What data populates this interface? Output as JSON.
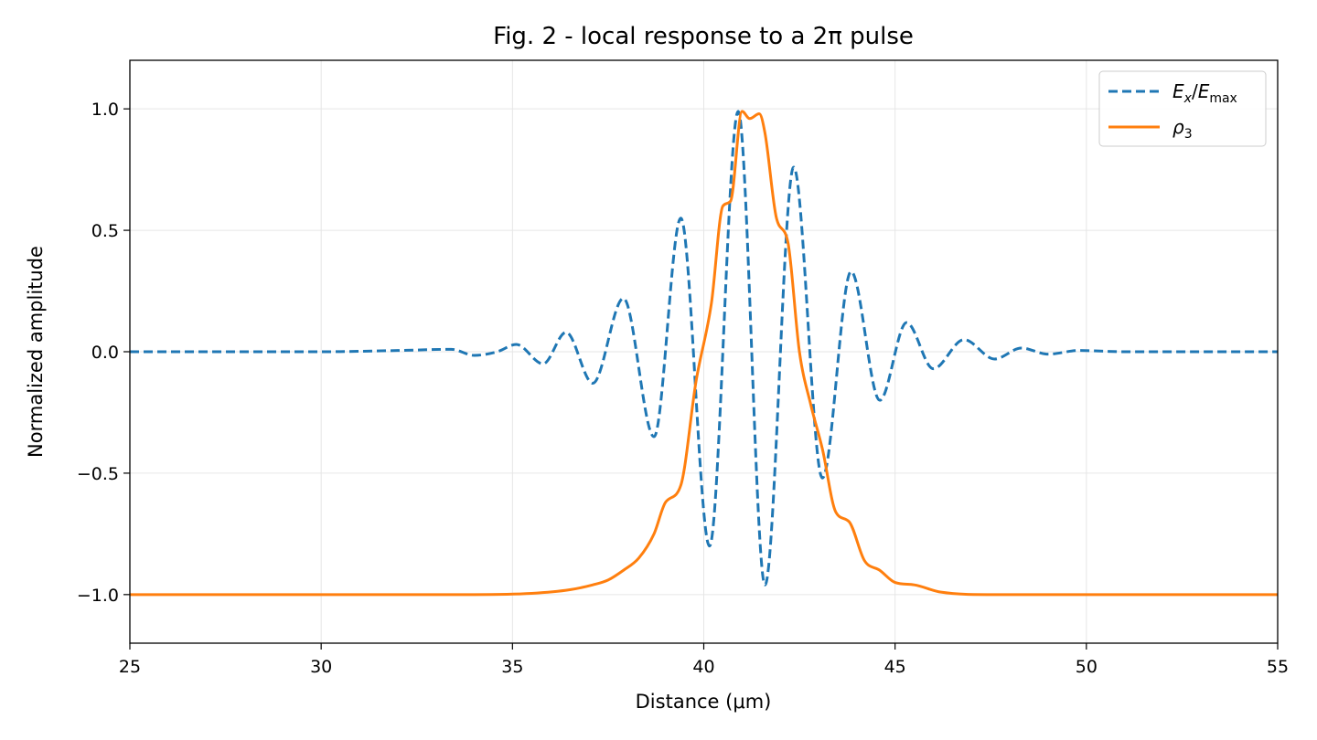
{
  "chart_data": {
    "type": "line",
    "title": "Fig. 2 - local response to a 2π pulse",
    "xlabel": "Distance (μm)",
    "ylabel": "Normalized amplitude",
    "xlim": [
      25,
      55
    ],
    "ylim": [
      -1.2,
      1.2
    ],
    "xticks": [
      25,
      30,
      35,
      40,
      45,
      50,
      55
    ],
    "xtick_labels": [
      "25",
      "30",
      "35",
      "40",
      "45",
      "50",
      "55"
    ],
    "yticks": [
      1.0,
      0.5,
      0.0,
      -0.5,
      -1.0
    ],
    "ytick_labels": [
      "1.0",
      "0.5",
      "0.0",
      "−0.5",
      "−1.0"
    ],
    "grid": true,
    "legend_position": "top-right",
    "series": [
      {
        "name": "Ex/Emax",
        "color": "#1f77b4",
        "style": "dashed",
        "x": [
          25,
          30,
          32,
          33.4,
          34,
          34.6,
          35.1,
          35.8,
          36.4,
          37.1,
          37.9,
          38.7,
          39.4,
          40.15,
          40.9,
          41.6,
          42.35,
          43.1,
          43.85,
          44.6,
          45.3,
          46.0,
          46.8,
          47.6,
          48.3,
          49.0,
          49.8,
          51,
          55
        ],
        "y": [
          0,
          0,
          0.005,
          0.01,
          -0.015,
          0.0,
          0.03,
          -0.05,
          0.08,
          -0.13,
          0.22,
          -0.35,
          0.55,
          -0.8,
          0.99,
          -0.96,
          0.76,
          -0.52,
          0.33,
          -0.2,
          0.12,
          -0.07,
          0.05,
          -0.03,
          0.015,
          -0.01,
          0.005,
          0,
          0
        ]
      },
      {
        "name": "ρ3",
        "color": "#ff7f0e",
        "style": "solid",
        "x": [
          25,
          34,
          35.5,
          36.5,
          37.1,
          37.5,
          37.9,
          38.3,
          38.7,
          39.0,
          39.4,
          39.8,
          40.2,
          40.5,
          40.7,
          41.0,
          41.2,
          41.45,
          41.6,
          41.9,
          42.2,
          42.5,
          42.8,
          43.1,
          43.45,
          43.8,
          44.2,
          44.6,
          45.0,
          45.5,
          46.2,
          47.5,
          55
        ],
        "y": [
          -1.0,
          -1.0,
          -0.995,
          -0.98,
          -0.96,
          -0.94,
          -0.9,
          -0.85,
          -0.75,
          -0.62,
          -0.55,
          -0.12,
          0.2,
          0.6,
          0.62,
          0.99,
          0.96,
          0.98,
          0.9,
          0.55,
          0.45,
          0.0,
          -0.22,
          -0.4,
          -0.66,
          -0.7,
          -0.86,
          -0.9,
          -0.95,
          -0.96,
          -0.99,
          -1.0,
          -1.0
        ]
      }
    ]
  }
}
